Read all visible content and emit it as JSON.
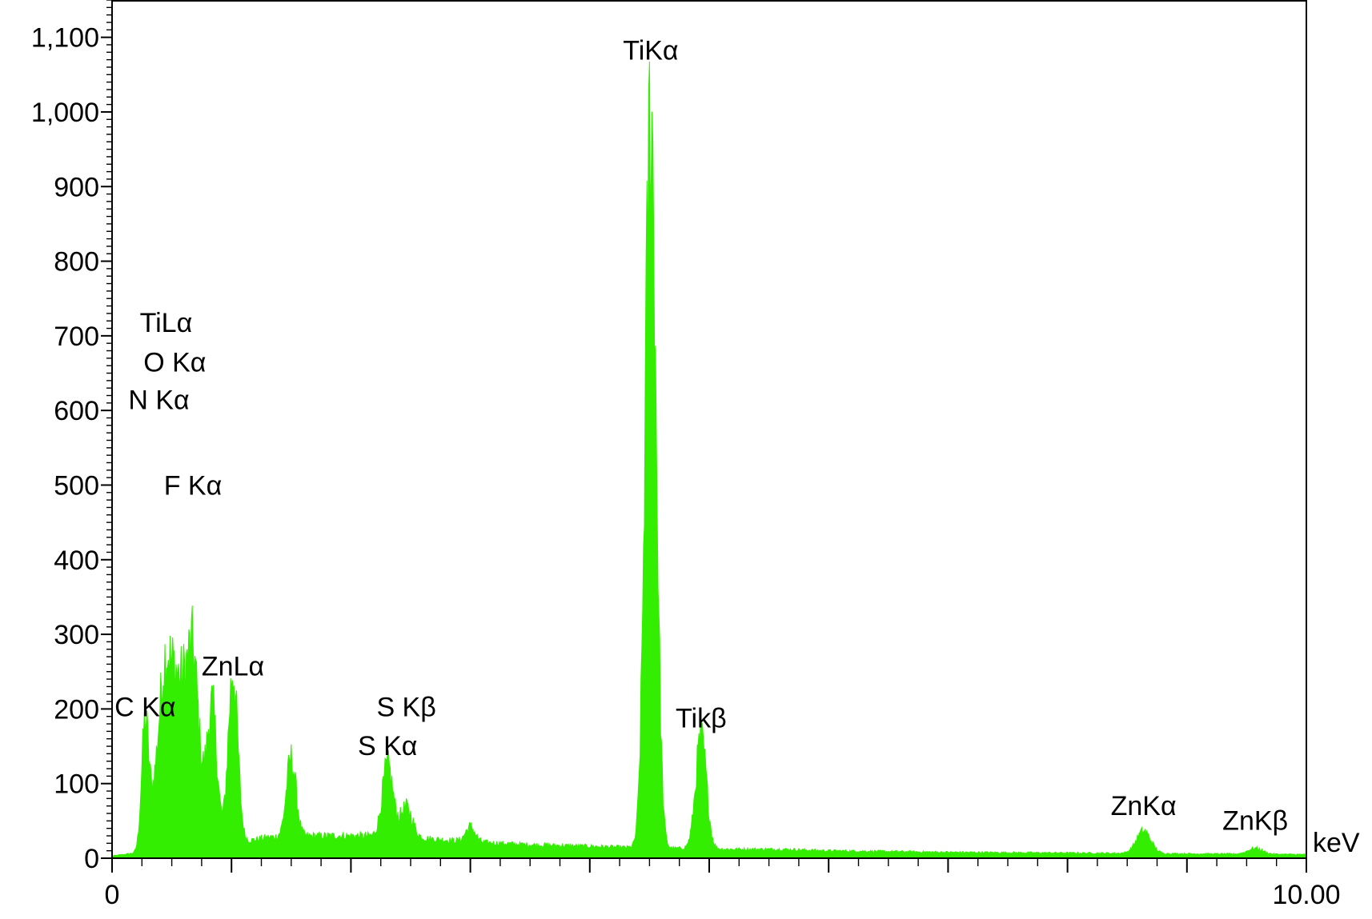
{
  "chart_data": {
    "type": "area",
    "title": "",
    "xlabel": "",
    "ylabel": "",
    "x_unit_label": "keV",
    "xlim": [
      0,
      10.0
    ],
    "ylim": [
      0,
      1150
    ],
    "x_tick_labels": [
      "0",
      "10.00"
    ],
    "y_ticks": [
      0,
      100,
      200,
      300,
      400,
      500,
      600,
      700,
      800,
      900,
      1000,
      1100
    ],
    "y_tick_labels": [
      "0",
      "100",
      "200",
      "300",
      "400",
      "500",
      "600",
      "700",
      "800",
      "900",
      "1,000",
      "1,100"
    ],
    "grid": false,
    "legend": "none",
    "series_color": "#33ee00",
    "baseline_points": [
      {
        "x": 0.0,
        "y": 3
      },
      {
        "x": 0.15,
        "y": 6
      },
      {
        "x": 0.3,
        "y": 10
      },
      {
        "x": 0.4,
        "y": 15
      },
      {
        "x": 1.1,
        "y": 22
      },
      {
        "x": 1.3,
        "y": 28
      },
      {
        "x": 1.7,
        "y": 30
      },
      {
        "x": 2.1,
        "y": 30
      },
      {
        "x": 2.5,
        "y": 28
      },
      {
        "x": 3.0,
        "y": 22
      },
      {
        "x": 3.5,
        "y": 18
      },
      {
        "x": 4.0,
        "y": 16
      },
      {
        "x": 4.4,
        "y": 14
      },
      {
        "x": 5.2,
        "y": 12
      },
      {
        "x": 5.6,
        "y": 12
      },
      {
        "x": 6.0,
        "y": 10
      },
      {
        "x": 7.0,
        "y": 8
      },
      {
        "x": 8.0,
        "y": 7
      },
      {
        "x": 9.0,
        "y": 6
      },
      {
        "x": 10.0,
        "y": 5
      }
    ],
    "peaks": [
      {
        "x": 0.277,
        "y": 170,
        "width": 0.03
      },
      {
        "x": 0.39,
        "y": 110,
        "width": 0.05
      },
      {
        "x": 0.452,
        "y": 175,
        "width": 0.04
      },
      {
        "x": 0.525,
        "y": 175,
        "width": 0.04
      },
      {
        "x": 0.6,
        "y": 140,
        "width": 0.04
      },
      {
        "x": 0.677,
        "y": 160,
        "width": 0.04
      },
      {
        "x": 0.705,
        "y": 90,
        "width": 0.08
      },
      {
        "x": 0.84,
        "y": 165,
        "width": 0.04
      },
      {
        "x": 1.012,
        "y": 230,
        "width": 0.04
      },
      {
        "x": 1.5,
        "y": 105,
        "width": 0.04
      },
      {
        "x": 2.307,
        "y": 95,
        "width": 0.045
      },
      {
        "x": 2.464,
        "y": 40,
        "width": 0.05
      },
      {
        "x": 3.0,
        "y": 20,
        "width": 0.04
      },
      {
        "x": 4.51,
        "y": 990,
        "width": 0.045
      },
      {
        "x": 4.932,
        "y": 150,
        "width": 0.045
      },
      {
        "x": 8.637,
        "y": 30,
        "width": 0.06
      },
      {
        "x": 9.572,
        "y": 8,
        "width": 0.06
      }
    ],
    "annotations": [
      {
        "text": "TiKα",
        "x": 4.51,
        "y": 1070
      },
      {
        "text": "TiLα",
        "x": 0.452,
        "y": 705
      },
      {
        "text": "O Kα",
        "x": 0.525,
        "y": 652
      },
      {
        "text": "N Kα",
        "x": 0.392,
        "y": 602
      },
      {
        "text": "F Kα",
        "x": 0.677,
        "y": 487
      },
      {
        "text": "ZnLα",
        "x": 1.012,
        "y": 245
      },
      {
        "text": "C Kα",
        "x": 0.277,
        "y": 190
      },
      {
        "text": "S Kβ",
        "x": 2.464,
        "y": 190
      },
      {
        "text": "S Kα",
        "x": 2.307,
        "y": 138
      },
      {
        "text": "Tikβ",
        "x": 4.932,
        "y": 175
      },
      {
        "text": "ZnKα",
        "x": 8.637,
        "y": 58
      },
      {
        "text": "ZnKβ",
        "x": 9.572,
        "y": 38
      }
    ]
  }
}
